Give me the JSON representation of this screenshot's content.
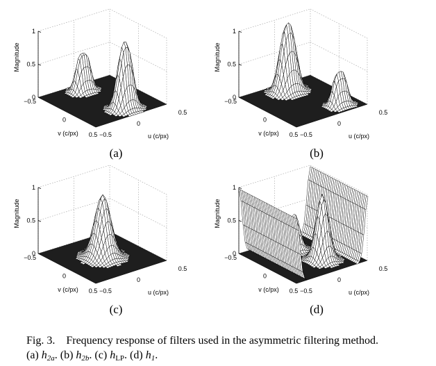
{
  "figure": {
    "panels": [
      {
        "label": "(a)",
        "ylabel": "Magnitude",
        "xlabel_v": "v (c/px)",
        "xlabel_u": "u (c/px)",
        "z_ticks": [
          "0",
          "0.5",
          "1"
        ],
        "v_ticks": [
          "−0.5",
          "0",
          "0.5"
        ],
        "u_ticks": [
          "−0.5",
          "0",
          "0.5"
        ],
        "surface": "two lobes: small lobe at low u, tall twin-peaked lobe at high u, peak ~0.75"
      },
      {
        "label": "(b)",
        "ylabel": "Magnitude",
        "xlabel_v": "v (c/px)",
        "xlabel_u": "u (c/px)",
        "z_ticks": [
          "0",
          "0.5",
          "1"
        ],
        "v_ticks": [
          "−0.5",
          "0",
          "0.5"
        ],
        "u_ticks": [
          "−0.5",
          "0",
          "0.5"
        ],
        "surface": "two lobes: tall twin-peaked lobe at low u (~0.75), smaller lobe at high u"
      },
      {
        "label": "(c)",
        "ylabel": "Magnitude",
        "xlabel_v": "v (c/px)",
        "xlabel_u": "u (c/px)",
        "z_ticks": [
          "0",
          "0.5",
          "1"
        ],
        "v_ticks": [
          "−0.5",
          "0",
          "0.5"
        ],
        "u_ticks": [
          "−0.5",
          "0",
          "0.5"
        ],
        "surface": "single central lowpass peak, magnitude ~0.95"
      },
      {
        "label": "(d)",
        "ylabel": "Magnitude",
        "xlabel_v": "v (c/px)",
        "xlabel_u": "u (c/px)",
        "z_ticks": [
          "0",
          "0.5",
          "1"
        ],
        "v_ticks": [
          "−0.5",
          "0",
          "0.5"
        ],
        "u_ticks": [
          "−0.5",
          "0",
          "0.5"
        ],
        "surface": "highpass: raised edges near 1 at u=±0.5, two central peaks (~0.55 and ~1)"
      }
    ]
  },
  "caption": {
    "prefix": "Fig. 3.",
    "text": "Frequency response of filters used in the asymmetric filtering method.",
    "items": [
      {
        "tag": "(a)",
        "sym": "h",
        "sub": "2a",
        "sub_roman": false,
        "end": "."
      },
      {
        "tag": "(b)",
        "sym": "h",
        "sub": "2b",
        "sub_roman": false,
        "end": "."
      },
      {
        "tag": "(c)",
        "sym": "h",
        "sub": "LP",
        "sub_roman": true,
        "end": "."
      },
      {
        "tag": "(d)",
        "sym": "h",
        "sub": "1",
        "sub_roman": false,
        "end": "."
      }
    ]
  }
}
